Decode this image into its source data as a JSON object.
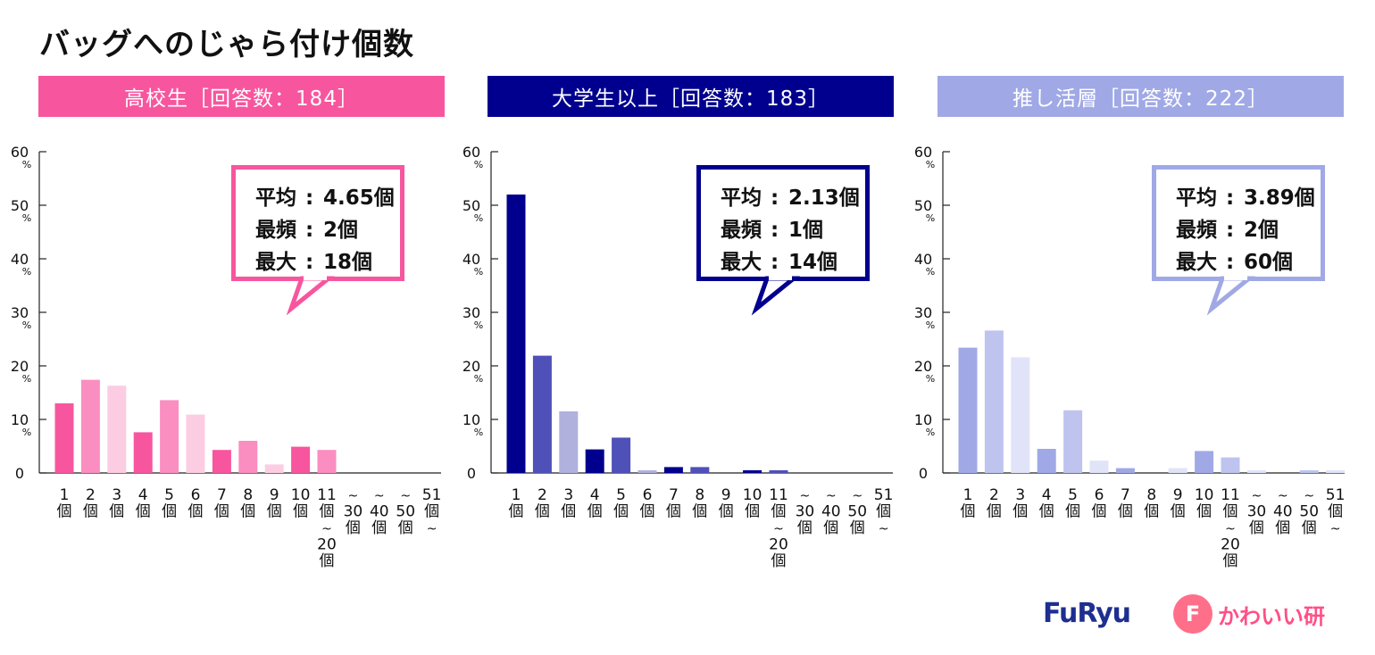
{
  "title": "バッグへのじゃら付け個数",
  "chart_data": [
    {
      "type": "bar",
      "header": "高校生［回答数：184］",
      "stats": [
        {
          "key": "平均",
          "value": "4.65個"
        },
        {
          "key": "最頻",
          "value": "2個"
        },
        {
          "key": "最大",
          "value": "18個"
        }
      ],
      "color": "#f7569e",
      "bar_colors": [
        "#f7569e",
        "#fa8ec0",
        "#fccde2"
      ],
      "values": [
        13.0,
        17.4,
        16.3,
        7.6,
        13.6,
        10.9,
        4.3,
        6.0,
        1.6,
        4.9,
        4.3,
        0,
        0,
        0,
        0
      ]
    },
    {
      "type": "bar",
      "header": "大学生以上［回答数：183］",
      "stats": [
        {
          "key": "平均",
          "value": "2.13個"
        },
        {
          "key": "最頻",
          "value": "1個"
        },
        {
          "key": "最大",
          "value": "14個"
        }
      ],
      "color": "#01008e",
      "bar_colors": [
        "#01008e",
        "#4f50b8",
        "#b0b1dc"
      ],
      "values": [
        52.0,
        21.9,
        11.5,
        4.4,
        6.6,
        0.5,
        1.1,
        1.1,
        0,
        0.5,
        0.5,
        0,
        0,
        0,
        0
      ]
    },
    {
      "type": "bar",
      "header": "推し活層［回答数：222］",
      "stats": [
        {
          "key": "平均",
          "value": "3.89個"
        },
        {
          "key": "最頻",
          "value": "2個"
        },
        {
          "key": "最大",
          "value": "60個"
        }
      ],
      "color": "#a0a9e6",
      "bar_colors": [
        "#a0a9e6",
        "#bec4ee",
        "#e1e4f8"
      ],
      "values": [
        23.4,
        26.6,
        21.6,
        4.5,
        11.7,
        2.3,
        0.9,
        0,
        0.9,
        4.1,
        2.9,
        0.5,
        0,
        0.5,
        0.5
      ]
    }
  ],
  "categories": [
    [
      "1",
      "個"
    ],
    [
      "2",
      "個"
    ],
    [
      "3",
      "個"
    ],
    [
      "4",
      "個"
    ],
    [
      "5",
      "個"
    ],
    [
      "6",
      "個"
    ],
    [
      "7",
      "個"
    ],
    [
      "8",
      "個"
    ],
    [
      "9",
      "個"
    ],
    [
      "10",
      "個"
    ],
    [
      "11",
      "個",
      "~",
      "20",
      "個"
    ],
    [
      "~",
      "30",
      "個"
    ],
    [
      "~",
      "40",
      "個"
    ],
    [
      "~",
      "50",
      "個"
    ],
    [
      "51",
      "個",
      "~"
    ]
  ],
  "yticks": [
    0,
    10,
    20,
    30,
    40,
    50,
    60
  ],
  "ylim": [
    0,
    60
  ],
  "ytick_unit": "%",
  "logos": {
    "furyu": "FuRyu",
    "kawaii_badge": "F",
    "kawaii_text": "かわいい研"
  }
}
